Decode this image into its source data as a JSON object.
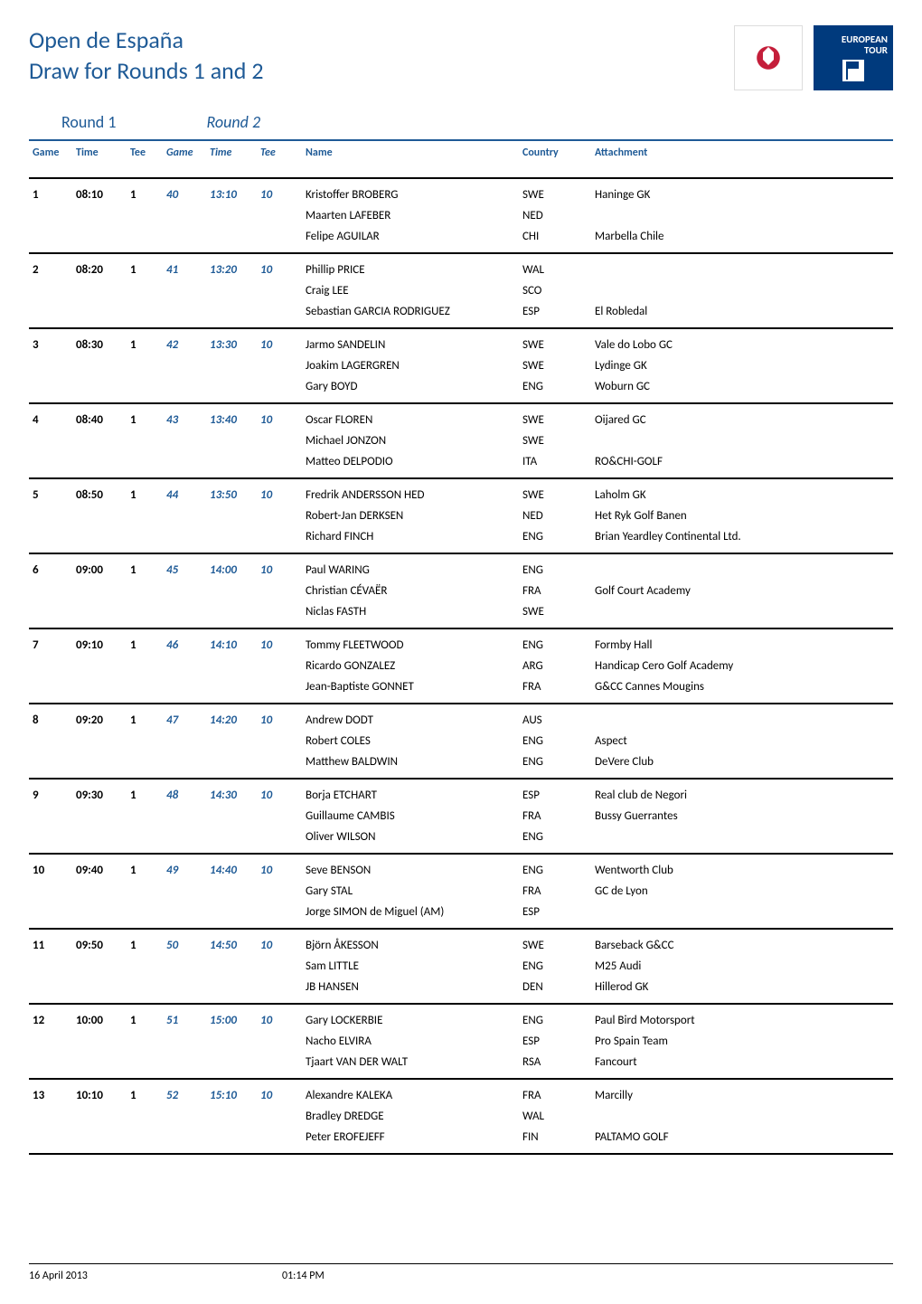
{
  "tournament_title": "Open de España",
  "subtitle": "Draw for Rounds 1 and 2",
  "colors": {
    "title": "#1e5a96",
    "header_border": "#1e5a96",
    "row_border": "#000000",
    "round2_text": "#1e5a96",
    "body_text": "#000000",
    "background": "#ffffff",
    "euro_logo_bg": "#003a7d"
  },
  "round_labels": {
    "round1": "Round 1",
    "round2": "Round 2"
  },
  "columns": {
    "game": "Game",
    "time": "Time",
    "tee": "Tee",
    "name": "Name",
    "country": "Country",
    "attachment": "Attachment"
  },
  "games": [
    {
      "r1": {
        "game": "1",
        "time": "08:10",
        "tee": "1"
      },
      "r2": {
        "game": "40",
        "time": "13:10",
        "tee": "10"
      },
      "players": [
        {
          "name": "Kristoffer BROBERG",
          "country": "SWE",
          "attachment": "Haninge GK"
        },
        {
          "name": "Maarten LAFEBER",
          "country": "NED",
          "attachment": ""
        },
        {
          "name": "Felipe AGUILAR",
          "country": "CHI",
          "attachment": "Marbella Chile"
        }
      ]
    },
    {
      "r1": {
        "game": "2",
        "time": "08:20",
        "tee": "1"
      },
      "r2": {
        "game": "41",
        "time": "13:20",
        "tee": "10"
      },
      "players": [
        {
          "name": "Phillip PRICE",
          "country": "WAL",
          "attachment": ""
        },
        {
          "name": "Craig LEE",
          "country": "SCO",
          "attachment": ""
        },
        {
          "name": "Sebastian GARCIA RODRIGUEZ",
          "country": "ESP",
          "attachment": "El Robledal"
        }
      ]
    },
    {
      "r1": {
        "game": "3",
        "time": "08:30",
        "tee": "1"
      },
      "r2": {
        "game": "42",
        "time": "13:30",
        "tee": "10"
      },
      "players": [
        {
          "name": "Jarmo SANDELIN",
          "country": "SWE",
          "attachment": "Vale do Lobo GC"
        },
        {
          "name": "Joakim LAGERGREN",
          "country": "SWE",
          "attachment": "Lydinge GK"
        },
        {
          "name": "Gary BOYD",
          "country": "ENG",
          "attachment": "Woburn GC"
        }
      ]
    },
    {
      "r1": {
        "game": "4",
        "time": "08:40",
        "tee": "1"
      },
      "r2": {
        "game": "43",
        "time": "13:40",
        "tee": "10"
      },
      "players": [
        {
          "name": "Oscar FLOREN",
          "country": "SWE",
          "attachment": "Oijared GC"
        },
        {
          "name": "Michael JONZON",
          "country": "SWE",
          "attachment": ""
        },
        {
          "name": "Matteo DELPODIO",
          "country": "ITA",
          "attachment": "RO&CHI-GOLF"
        }
      ]
    },
    {
      "r1": {
        "game": "5",
        "time": "08:50",
        "tee": "1"
      },
      "r2": {
        "game": "44",
        "time": "13:50",
        "tee": "10"
      },
      "players": [
        {
          "name": "Fredrik ANDERSSON HED",
          "country": "SWE",
          "attachment": "Laholm GK"
        },
        {
          "name": "Robert-Jan DERKSEN",
          "country": "NED",
          "attachment": "Het Ryk Golf Banen"
        },
        {
          "name": "Richard FINCH",
          "country": "ENG",
          "attachment": "Brian Yeardley Continental Ltd."
        }
      ]
    },
    {
      "r1": {
        "game": "6",
        "time": "09:00",
        "tee": "1"
      },
      "r2": {
        "game": "45",
        "time": "14:00",
        "tee": "10"
      },
      "players": [
        {
          "name": "Paul WARING",
          "country": "ENG",
          "attachment": ""
        },
        {
          "name": "Christian CÉVAËR",
          "country": "FRA",
          "attachment": "Golf Court Academy"
        },
        {
          "name": "Niclas FASTH",
          "country": "SWE",
          "attachment": ""
        }
      ]
    },
    {
      "r1": {
        "game": "7",
        "time": "09:10",
        "tee": "1"
      },
      "r2": {
        "game": "46",
        "time": "14:10",
        "tee": "10"
      },
      "players": [
        {
          "name": "Tommy FLEETWOOD",
          "country": "ENG",
          "attachment": "Formby Hall"
        },
        {
          "name": "Ricardo GONZALEZ",
          "country": "ARG",
          "attachment": "Handicap Cero Golf Academy"
        },
        {
          "name": "Jean-Baptiste GONNET",
          "country": "FRA",
          "attachment": "G&CC Cannes Mougins"
        }
      ]
    },
    {
      "r1": {
        "game": "8",
        "time": "09:20",
        "tee": "1"
      },
      "r2": {
        "game": "47",
        "time": "14:20",
        "tee": "10"
      },
      "players": [
        {
          "name": "Andrew DODT",
          "country": "AUS",
          "attachment": ""
        },
        {
          "name": "Robert COLES",
          "country": "ENG",
          "attachment": "Aspect"
        },
        {
          "name": "Matthew BALDWIN",
          "country": "ENG",
          "attachment": "DeVere Club"
        }
      ]
    },
    {
      "r1": {
        "game": "9",
        "time": "09:30",
        "tee": "1"
      },
      "r2": {
        "game": "48",
        "time": "14:30",
        "tee": "10"
      },
      "players": [
        {
          "name": "Borja ETCHART",
          "country": "ESP",
          "attachment": "Real club de Negori"
        },
        {
          "name": "Guillaume CAMBIS",
          "country": "FRA",
          "attachment": "Bussy Guerrantes"
        },
        {
          "name": "Oliver WILSON",
          "country": "ENG",
          "attachment": ""
        }
      ]
    },
    {
      "r1": {
        "game": "10",
        "time": "09:40",
        "tee": "1"
      },
      "r2": {
        "game": "49",
        "time": "14:40",
        "tee": "10"
      },
      "players": [
        {
          "name": "Seve BENSON",
          "country": "ENG",
          "attachment": "Wentworth Club"
        },
        {
          "name": "Gary STAL",
          "country": "FRA",
          "attachment": "GC de Lyon"
        },
        {
          "name": "Jorge SIMON de Miguel (AM)",
          "country": "ESP",
          "attachment": ""
        }
      ]
    },
    {
      "r1": {
        "game": "11",
        "time": "09:50",
        "tee": "1"
      },
      "r2": {
        "game": "50",
        "time": "14:50",
        "tee": "10"
      },
      "players": [
        {
          "name": "Björn ÅKESSON",
          "country": "SWE",
          "attachment": "Barseback G&CC"
        },
        {
          "name": "Sam LITTLE",
          "country": "ENG",
          "attachment": "M25 Audi"
        },
        {
          "name": "JB HANSEN",
          "country": "DEN",
          "attachment": "Hillerod GK"
        }
      ]
    },
    {
      "r1": {
        "game": "12",
        "time": "10:00",
        "tee": "1"
      },
      "r2": {
        "game": "51",
        "time": "15:00",
        "tee": "10"
      },
      "players": [
        {
          "name": "Gary LOCKERBIE",
          "country": "ENG",
          "attachment": "Paul Bird Motorsport"
        },
        {
          "name": "Nacho ELVIRA",
          "country": "ESP",
          "attachment": "Pro Spain Team"
        },
        {
          "name": "Tjaart VAN DER WALT",
          "country": "RSA",
          "attachment": "Fancourt"
        }
      ]
    },
    {
      "r1": {
        "game": "13",
        "time": "10:10",
        "tee": "1"
      },
      "r2": {
        "game": "52",
        "time": "15:10",
        "tee": "10"
      },
      "players": [
        {
          "name": "Alexandre KALEKA",
          "country": "FRA",
          "attachment": "Marcilly"
        },
        {
          "name": "Bradley DREDGE",
          "country": "WAL",
          "attachment": ""
        },
        {
          "name": "Peter EROFEJEFF",
          "country": "FIN",
          "attachment": "PALTAMO GOLF"
        }
      ]
    }
  ],
  "footer": {
    "date": "16 April 2013",
    "time": "01:14 PM"
  },
  "logos": {
    "euro_text_line1": "EUROPEAN",
    "euro_text_line2": "TOUR"
  }
}
